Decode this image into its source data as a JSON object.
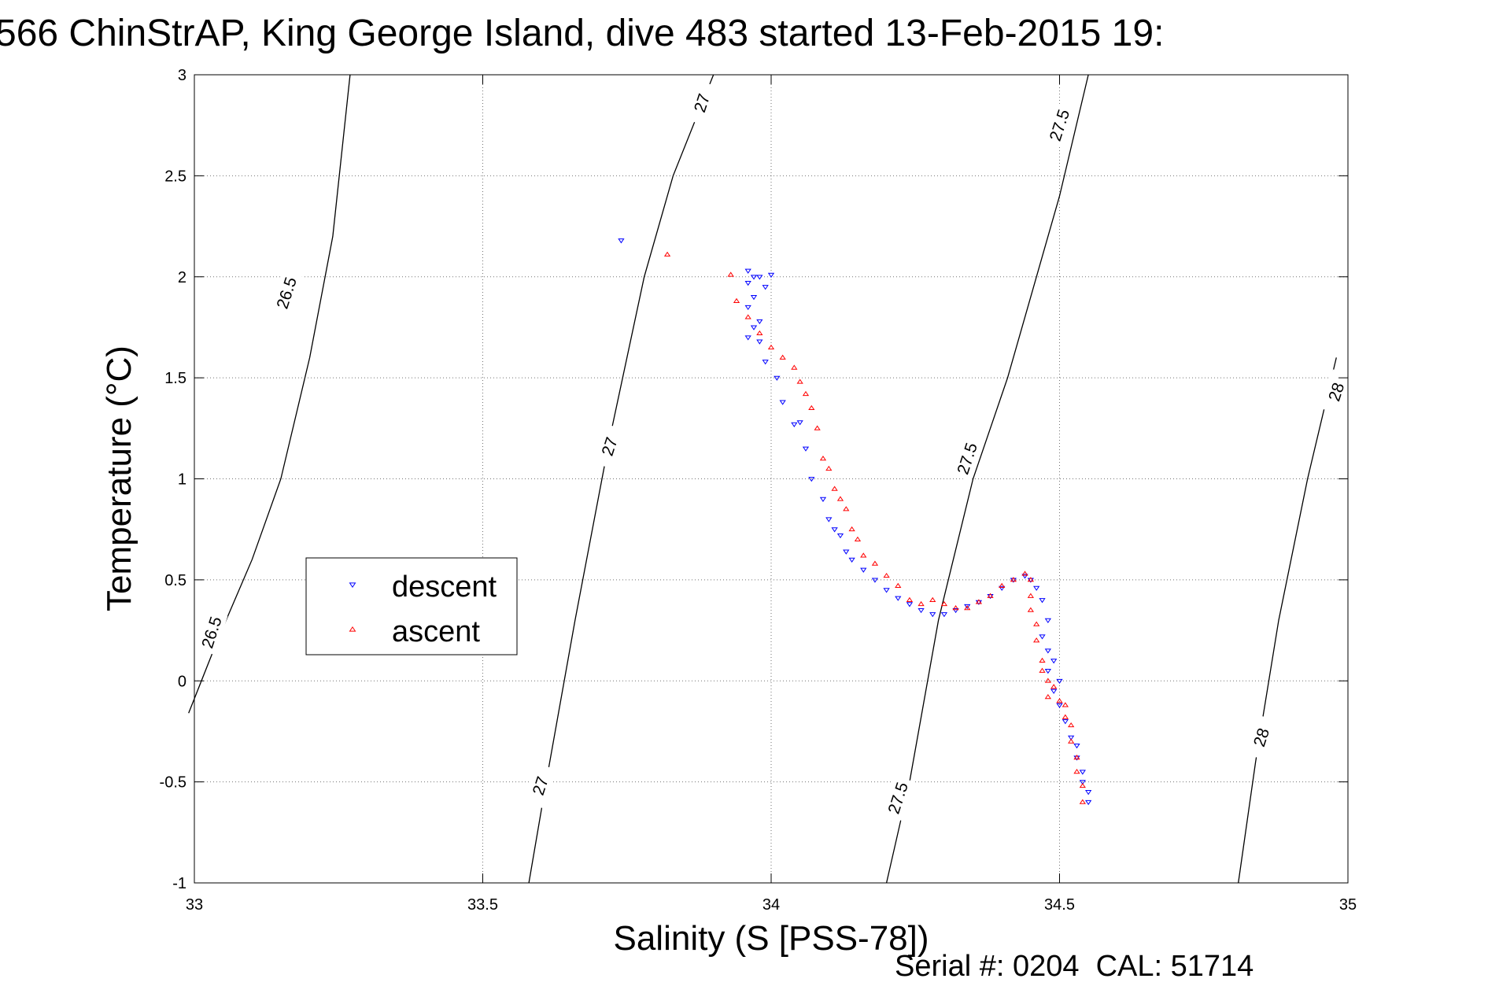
{
  "chart_data": {
    "type": "scatter",
    "title": "566 ChinStrAP, King George Island, dive 483 started 13-Feb-2015 19:",
    "xlabel": "Salinity (S [PSS-78])",
    "ylabel": "Temperature (°C)",
    "xlim": [
      33,
      35
    ],
    "ylim": [
      -1,
      3
    ],
    "x_ticks": [
      "33",
      "33.5",
      "34",
      "34.5",
      "35"
    ],
    "y_ticks": [
      "-1",
      "-0.5",
      "0",
      "0.5",
      "1",
      "1.5",
      "2",
      "2.5",
      "3"
    ],
    "grid": true,
    "legend_position": "left-middle",
    "footer": "Serial #: 0204  CAL: 51714",
    "colors": {
      "descent": "#0000ff",
      "ascent": "#ff0000",
      "contour": "#000000"
    },
    "isopycnals": [
      {
        "label": "26.5",
        "points": [
          [
            32.99,
            -0.16
          ],
          [
            33.04,
            0.2
          ],
          [
            33.1,
            0.6
          ],
          [
            33.15,
            1.0
          ],
          [
            33.2,
            1.6
          ],
          [
            33.24,
            2.2
          ],
          [
            33.27,
            3.0
          ]
        ],
        "label_positions": [
          [
            33.03,
            0.24
          ],
          [
            33.16,
            1.92
          ]
        ]
      },
      {
        "label": "27",
        "points": [
          [
            33.58,
            -1.0
          ],
          [
            33.61,
            -0.5
          ],
          [
            33.66,
            0.3
          ],
          [
            33.72,
            1.2
          ],
          [
            33.78,
            2.0
          ],
          [
            33.83,
            2.5
          ],
          [
            33.9,
            3.0
          ]
        ],
        "label_positions": [
          [
            33.6,
            -0.52
          ],
          [
            33.72,
            1.16
          ],
          [
            33.88,
            2.86
          ]
        ]
      },
      {
        "label": "27.5",
        "points": [
          [
            34.2,
            -1.0
          ],
          [
            34.24,
            -0.5
          ],
          [
            34.29,
            0.3
          ],
          [
            34.35,
            1.0
          ],
          [
            34.41,
            1.5
          ],
          [
            34.47,
            2.1
          ],
          [
            34.5,
            2.4
          ],
          [
            34.55,
            3.0
          ]
        ],
        "label_positions": [
          [
            34.22,
            -0.58
          ],
          [
            34.34,
            1.1
          ],
          [
            34.5,
            2.75
          ]
        ]
      },
      {
        "label": "28",
        "points": [
          [
            34.81,
            -1.0
          ],
          [
            34.84,
            -0.4
          ],
          [
            34.88,
            0.3
          ],
          [
            34.93,
            1.0
          ],
          [
            34.98,
            1.6
          ]
        ],
        "label_positions": [
          [
            34.85,
            -0.28
          ],
          [
            34.98,
            1.43
          ]
        ]
      }
    ],
    "series": [
      {
        "name": "descent",
        "marker": "triangle-down",
        "x": [
          33.74,
          33.96,
          33.97,
          33.98,
          33.96,
          33.99,
          34.0,
          33.97,
          33.96,
          33.98,
          33.97,
          33.96,
          33.98,
          33.99,
          34.01,
          34.02,
          34.04,
          34.05,
          34.06,
          34.07,
          34.09,
          34.1,
          34.11,
          34.12,
          34.13,
          34.14,
          34.16,
          34.18,
          34.2,
          34.22,
          34.24,
          34.26,
          34.28,
          34.3,
          34.32,
          34.34,
          34.36,
          34.38,
          34.4,
          34.42,
          34.44,
          34.45,
          34.46,
          34.47,
          34.48,
          34.47,
          34.48,
          34.49,
          34.48,
          34.5,
          34.49,
          34.5,
          34.51,
          34.52,
          34.53,
          34.53,
          34.54,
          34.54,
          34.55,
          34.55
        ],
        "y": [
          2.18,
          2.03,
          2.0,
          2.0,
          1.97,
          1.95,
          2.01,
          1.9,
          1.85,
          1.78,
          1.75,
          1.7,
          1.68,
          1.58,
          1.5,
          1.38,
          1.27,
          1.28,
          1.15,
          1.0,
          0.9,
          0.8,
          0.75,
          0.72,
          0.64,
          0.6,
          0.55,
          0.5,
          0.45,
          0.41,
          0.38,
          0.35,
          0.33,
          0.33,
          0.35,
          0.37,
          0.39,
          0.42,
          0.46,
          0.5,
          0.52,
          0.5,
          0.46,
          0.4,
          0.3,
          0.22,
          0.15,
          0.1,
          0.05,
          0.0,
          -0.05,
          -0.12,
          -0.2,
          -0.28,
          -0.32,
          -0.38,
          -0.45,
          -0.5,
          -0.55,
          -0.6
        ]
      },
      {
        "name": "ascent",
        "marker": "triangle-up",
        "x": [
          33.82,
          33.93,
          33.94,
          33.96,
          33.98,
          34.0,
          34.02,
          34.04,
          34.05,
          34.06,
          34.07,
          34.08,
          34.09,
          34.1,
          34.11,
          34.12,
          34.13,
          34.14,
          34.15,
          34.16,
          34.18,
          34.2,
          34.22,
          34.24,
          34.26,
          34.28,
          34.3,
          34.32,
          34.34,
          34.36,
          34.38,
          34.4,
          34.42,
          34.44,
          34.45,
          34.45,
          34.45,
          34.46,
          34.46,
          34.47,
          34.47,
          34.48,
          34.49,
          34.48,
          34.5,
          34.51,
          34.51,
          34.52,
          34.52,
          34.53,
          34.53,
          34.54,
          34.54
        ],
        "y": [
          2.11,
          2.01,
          1.88,
          1.8,
          1.72,
          1.65,
          1.6,
          1.55,
          1.48,
          1.42,
          1.35,
          1.25,
          1.1,
          1.05,
          0.95,
          0.9,
          0.85,
          0.75,
          0.7,
          0.62,
          0.58,
          0.52,
          0.47,
          0.4,
          0.38,
          0.4,
          0.38,
          0.36,
          0.36,
          0.39,
          0.42,
          0.47,
          0.5,
          0.53,
          0.5,
          0.42,
          0.35,
          0.28,
          0.2,
          0.1,
          0.05,
          0.0,
          -0.03,
          -0.08,
          -0.1,
          -0.12,
          -0.18,
          -0.22,
          -0.3,
          -0.38,
          -0.45,
          -0.52,
          -0.6
        ]
      }
    ]
  }
}
